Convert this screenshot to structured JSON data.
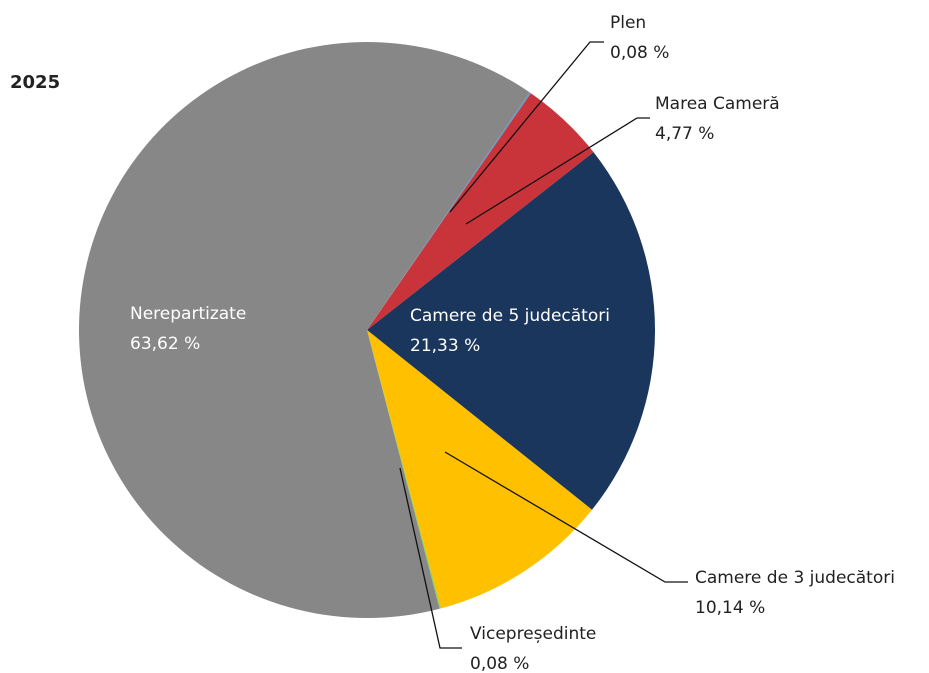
{
  "chart_data": {
    "type": "pie",
    "title": "2025",
    "categories": [
      "Plen",
      "Marea Cameră",
      "Camere de 5 judecători",
      "Camere de 3 judecători",
      "Vicepreședinte",
      "Nerepartizate"
    ],
    "values": [
      0.08,
      4.77,
      21.33,
      10.14,
      0.08,
      63.62
    ],
    "value_labels": [
      "0,08 %",
      "4,77 %",
      "21,33 %",
      "10,14 %",
      "0,08 %",
      "63,62 %"
    ],
    "colors": [
      "#5b9bd5",
      "#c9343a",
      "#1a365d",
      "#ffc000",
      "#92d050",
      "#878787"
    ]
  }
}
